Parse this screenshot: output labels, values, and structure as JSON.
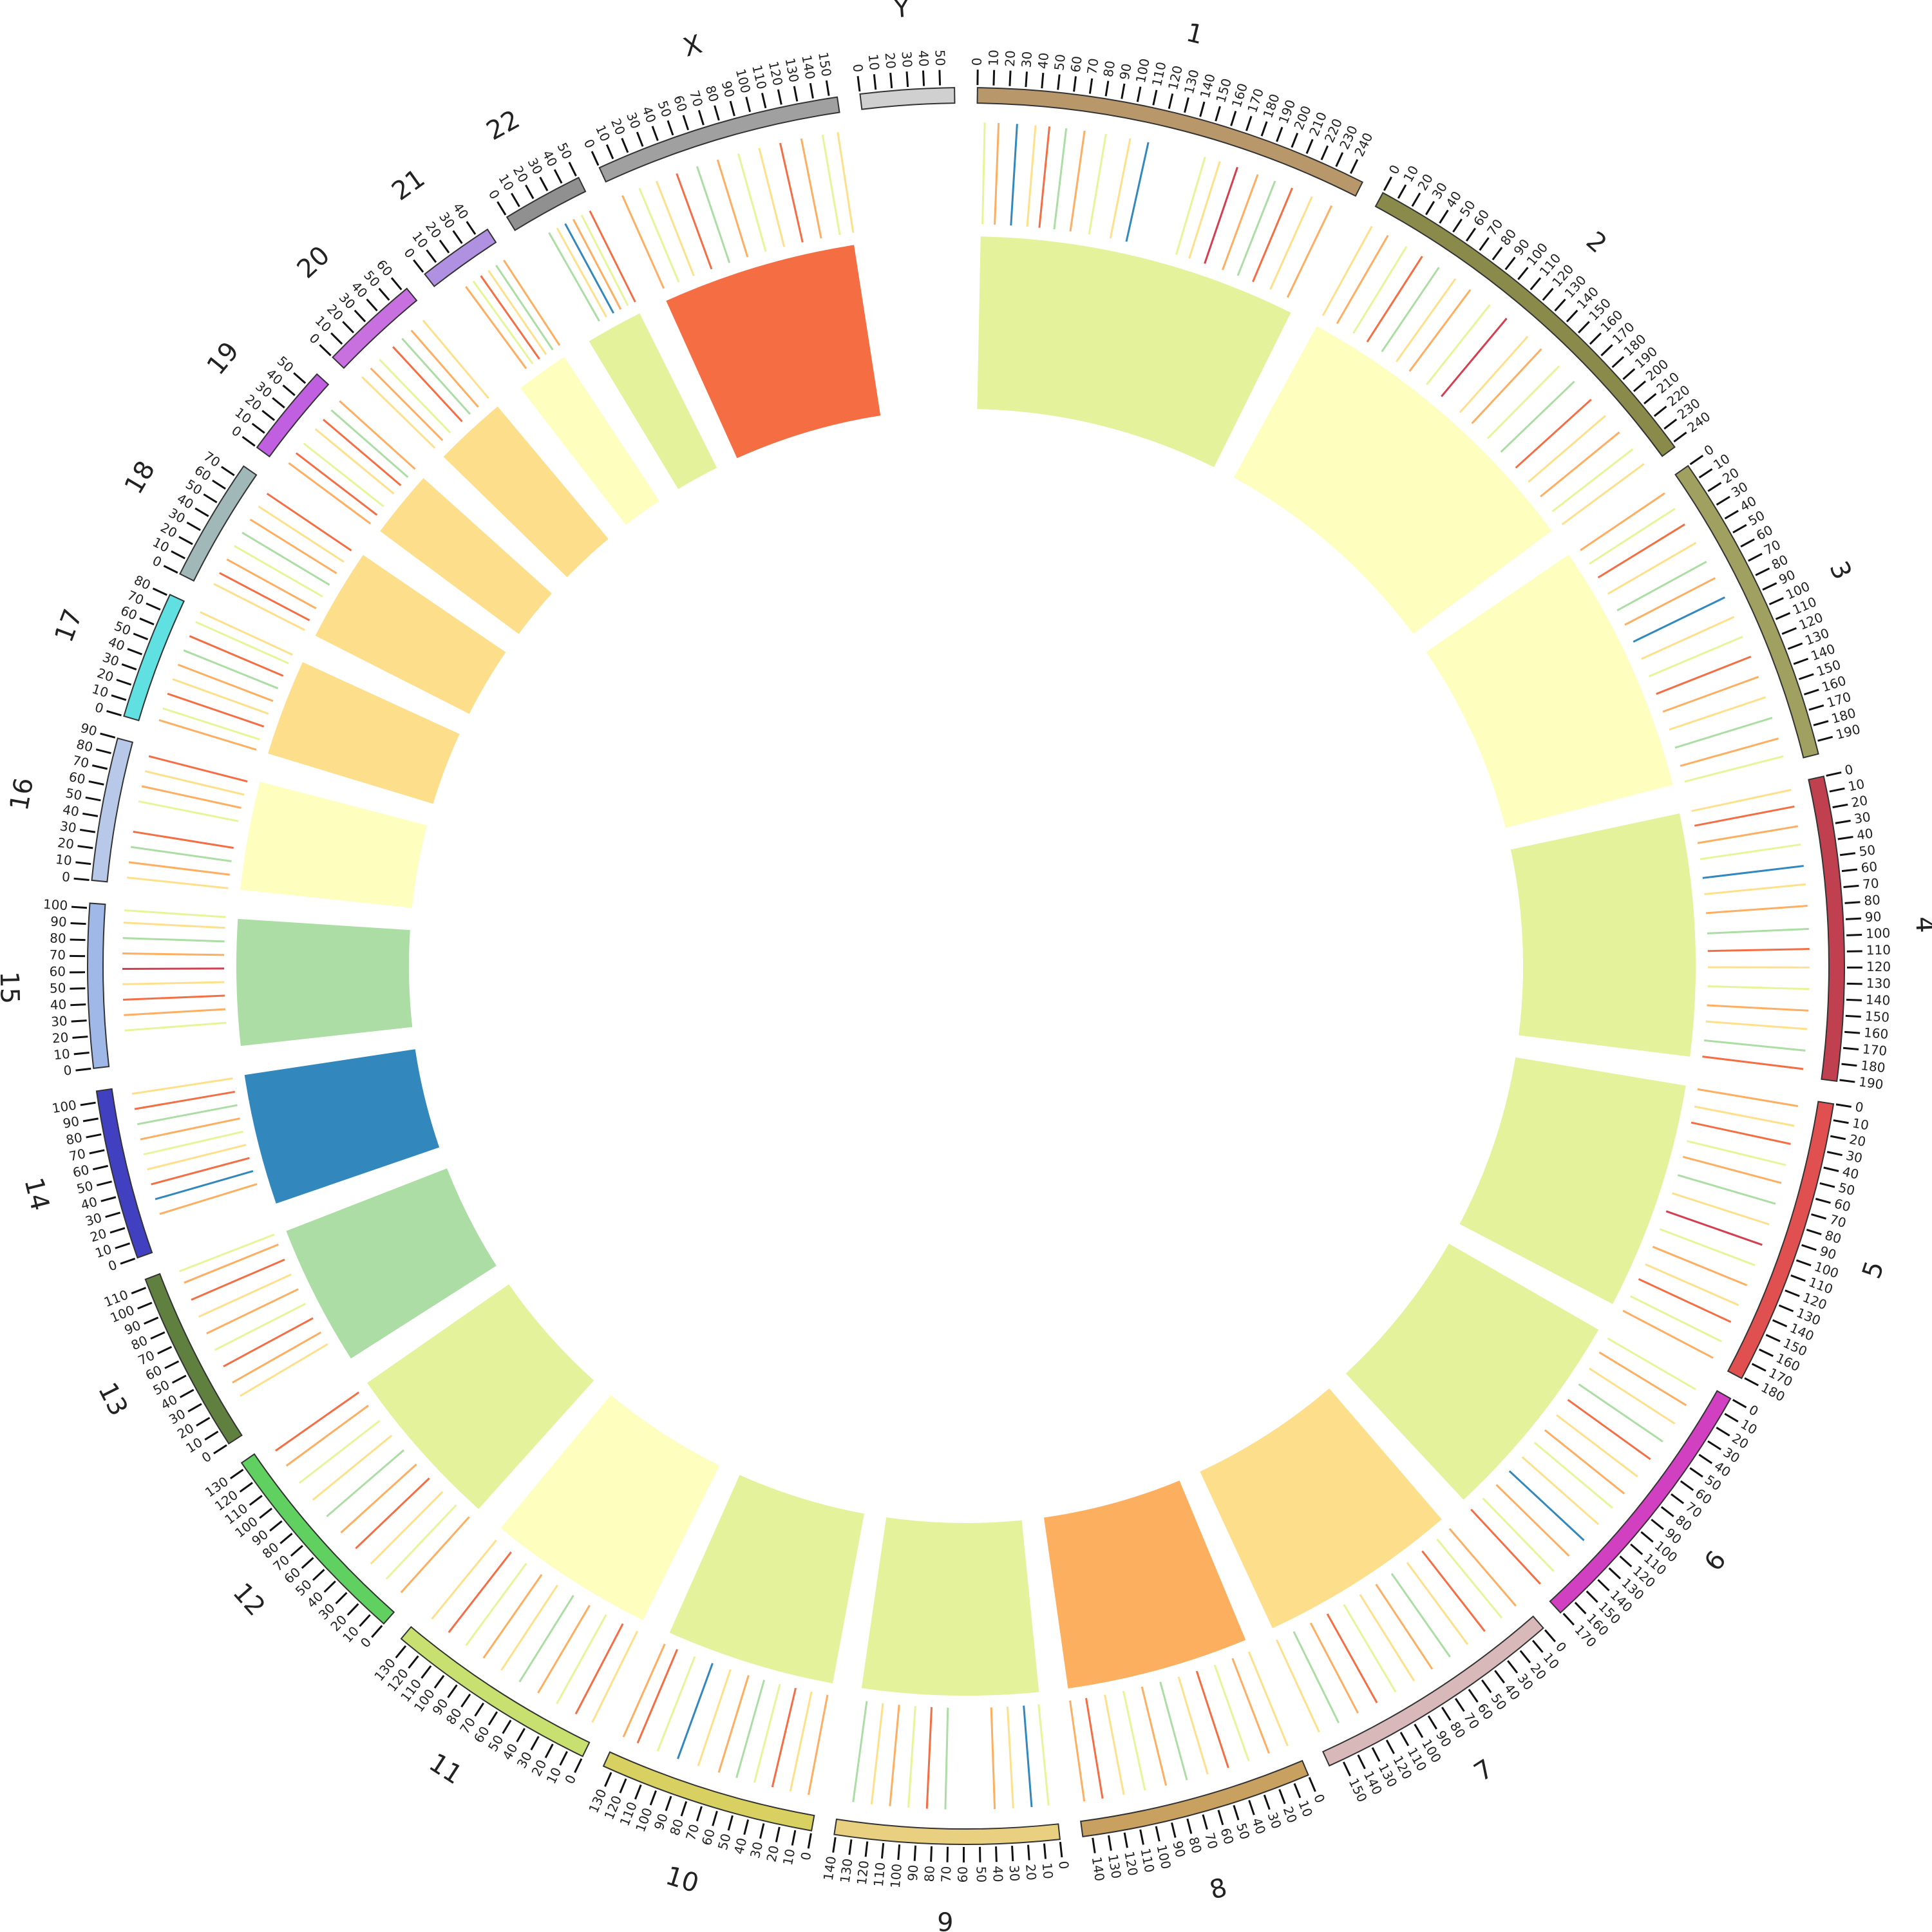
{
  "chart_data": {
    "type": "circos",
    "ticks": [
      0,
      10,
      20,
      30,
      40,
      50,
      60,
      70,
      80,
      90,
      100,
      110,
      120,
      130,
      140,
      150,
      160,
      170,
      180,
      190,
      200,
      210,
      220,
      230,
      240
    ],
    "palette": [
      "#d53e4f",
      "#f46d43",
      "#fdae61",
      "#fee08b",
      "#e6f598",
      "#abdda4",
      "#3288bd"
    ],
    "chromosomes": [
      {
        "name": "1",
        "length": 249,
        "color": "#b8986a",
        "heat": "#e3f29b",
        "pos": [
          5,
          14,
          26,
          38,
          47,
          58,
          70,
          84,
          100,
          112,
          150,
          160,
          172,
          186,
          198,
          210,
          224,
          238
        ],
        "ci": [
          4,
          2,
          6,
          3,
          1,
          5,
          2,
          4,
          3,
          6,
          4,
          3,
          0,
          2,
          5,
          1,
          3,
          2
        ]
      },
      {
        "name": "2",
        "length": 243,
        "color": "#8a8a4a",
        "heat": "#fefebe",
        "pos": [
          4,
          16,
          30,
          42,
          55,
          68,
          80,
          96,
          110,
          128,
          140,
          156,
          170,
          186,
          200,
          214,
          228,
          240
        ],
        "ci": [
          3,
          2,
          4,
          1,
          5,
          3,
          2,
          4,
          0,
          3,
          2,
          4,
          5,
          1,
          3,
          2,
          4,
          3
        ]
      },
      {
        "name": "3",
        "length": 198,
        "color": "#a0a060",
        "heat": "#fefebe",
        "pos": [
          6,
          18,
          30,
          44,
          58,
          70,
          84,
          98,
          112,
          126,
          140,
          154,
          168,
          182,
          194
        ],
        "ci": [
          2,
          4,
          1,
          3,
          5,
          2,
          6,
          3,
          4,
          1,
          2,
          3,
          5,
          2,
          4
        ]
      },
      {
        "name": "4",
        "length": 191,
        "color": "#c04050",
        "heat": "#e3f29b",
        "pos": [
          4,
          15,
          28,
          40,
          54,
          66,
          80,
          95,
          108,
          120,
          134,
          148,
          160,
          174,
          186
        ],
        "ci": [
          3,
          1,
          2,
          4,
          6,
          3,
          2,
          5,
          1,
          3,
          4,
          2,
          3,
          5,
          1
        ]
      },
      {
        "name": "5",
        "length": 181,
        "color": "#e05050",
        "heat": "#e3f29b",
        "pos": [
          5,
          18,
          30,
          44,
          56,
          70,
          84,
          98,
          112,
          126,
          140,
          152,
          166,
          178
        ],
        "ci": [
          2,
          3,
          1,
          4,
          2,
          5,
          3,
          0,
          4,
          2,
          3,
          1,
          4,
          2
        ]
      },
      {
        "name": "6",
        "length": 171,
        "color": "#d040c0",
        "heat": "#e3f29b",
        "pos": [
          6,
          18,
          32,
          46,
          60,
          74,
          88,
          100,
          114,
          128,
          142,
          156,
          168
        ],
        "ci": [
          4,
          2,
          3,
          5,
          1,
          3,
          2,
          4,
          3,
          6,
          2,
          4,
          1
        ]
      },
      {
        "name": "7",
        "length": 159,
        "color": "#d8b8b8",
        "heat": "#fdde8b",
        "pos": [
          4,
          16,
          30,
          44,
          58,
          72,
          86,
          100,
          114,
          128,
          142,
          156
        ],
        "ci": [
          2,
          4,
          1,
          3,
          5,
          2,
          3,
          4,
          1,
          2,
          5,
          3
        ]
      },
      {
        "name": "8",
        "length": 146,
        "color": "#c8a060",
        "heat": "#fdaf60",
        "pos": [
          5,
          18,
          32,
          46,
          60,
          74,
          88,
          102,
          116,
          130,
          142
        ],
        "ci": [
          3,
          2,
          4,
          1,
          3,
          5,
          2,
          4,
          3,
          1,
          2
        ]
      },
      {
        "name": "9",
        "length": 141,
        "color": "#e8d080",
        "heat": "#e3f29b",
        "pos": [
          5,
          16,
          28,
          40,
          72,
          84,
          96,
          108,
          120,
          132
        ],
        "ci": [
          4,
          6,
          3,
          2,
          5,
          1,
          4,
          2,
          3,
          5
        ]
      },
      {
        "name": "10",
        "length": 136,
        "color": "#d8d060",
        "heat": "#e3f29b",
        "pos": [
          6,
          18,
          30,
          42,
          54,
          66,
          80,
          94,
          108,
          122,
          132
        ],
        "ci": [
          2,
          3,
          1,
          4,
          5,
          2,
          3,
          6,
          4,
          1,
          2
        ]
      },
      {
        "name": "11",
        "length": 135,
        "color": "#c8e070",
        "heat": "#fefebe",
        "pos": [
          4,
          16,
          30,
          44,
          58,
          72,
          86,
          100,
          114,
          128
        ],
        "ci": [
          3,
          1,
          4,
          2,
          5,
          3,
          2,
          4,
          1,
          3
        ]
      },
      {
        "name": "12",
        "length": 134,
        "color": "#60d060",
        "heat": "#e3f29b",
        "pos": [
          5,
          18,
          32,
          46,
          60,
          74,
          88,
          102,
          116,
          128
        ],
        "ci": [
          2,
          4,
          3,
          1,
          2,
          5,
          3,
          4,
          2,
          1
        ]
      },
      {
        "name": "13",
        "length": 115,
        "color": "#608040",
        "heat": "#abdda4",
        "pos": [
          22,
          32,
          44,
          56,
          68,
          80,
          92,
          104,
          112
        ],
        "ci": [
          3,
          2,
          1,
          4,
          2,
          3,
          1,
          2,
          4
        ]
      },
      {
        "name": "14",
        "length": 107,
        "color": "#4040c0",
        "heat": "#3288bd",
        "pos": [
          22,
          32,
          42,
          52,
          62,
          72,
          82,
          92,
          102
        ],
        "ci": [
          2,
          6,
          1,
          3,
          4,
          2,
          5,
          1,
          3
        ]
      },
      {
        "name": "15",
        "length": 103,
        "color": "#a0b8e8",
        "heat": "#abdda4",
        "pos": [
          22,
          32,
          42,
          52,
          62,
          72,
          82,
          92,
          100
        ],
        "ci": [
          4,
          2,
          1,
          3,
          0,
          2,
          5,
          3,
          4
        ]
      },
      {
        "name": "16",
        "length": 90,
        "color": "#b8c8e8",
        "heat": "#fefebe",
        "pos": [
          4,
          14,
          24,
          34,
          54,
          64,
          74,
          84
        ],
        "ci": [
          3,
          2,
          5,
          1,
          4,
          2,
          3,
          1
        ]
      },
      {
        "name": "17",
        "length": 81,
        "color": "#60e0e0",
        "heat": "#fdde8b",
        "pos": [
          4,
          12,
          22,
          32,
          42,
          52,
          62,
          72,
          79
        ],
        "ci": [
          2,
          4,
          1,
          3,
          2,
          5,
          1,
          4,
          3
        ]
      },
      {
        "name": "18",
        "length": 78,
        "color": "#a0b8b8",
        "heat": "#fdde8b",
        "pos": [
          4,
          12,
          22,
          32,
          42,
          52,
          62,
          72
        ],
        "ci": [
          3,
          1,
          2,
          4,
          5,
          2,
          3,
          1
        ]
      },
      {
        "name": "19",
        "length": 59,
        "color": "#c060e0",
        "heat": "#fdde8b",
        "pos": [
          4,
          12,
          20,
          32,
          40,
          48,
          56
        ],
        "ci": [
          2,
          1,
          4,
          3,
          1,
          5,
          2
        ]
      },
      {
        "name": "20",
        "length": 63,
        "color": "#c870e0",
        "heat": "#fdde8b",
        "pos": [
          4,
          12,
          20,
          32,
          40,
          48,
          58
        ],
        "ci": [
          3,
          2,
          4,
          1,
          5,
          2,
          3
        ]
      },
      {
        "name": "21",
        "length": 48,
        "color": "#b090e0",
        "heat": "#fefebe",
        "pos": [
          16,
          22,
          28,
          34,
          40,
          46
        ],
        "ci": [
          2,
          4,
          1,
          3,
          5,
          2
        ]
      },
      {
        "name": "22",
        "length": 51,
        "color": "#909090",
        "heat": "#e3f29b",
        "pos": [
          18,
          24,
          30,
          36,
          42,
          48
        ],
        "ci": [
          5,
          3,
          6,
          2,
          4,
          1
        ]
      },
      {
        "name": "X",
        "length": 155,
        "color": "#a0a0a0",
        "heat": "#f46d43",
        "pos": [
          6,
          18,
          30,
          44,
          58,
          72,
          86,
          100,
          114,
          128,
          142,
          152
        ],
        "ci": [
          2,
          4,
          3,
          1,
          5,
          2,
          4,
          3,
          1,
          2,
          4,
          3
        ]
      },
      {
        "name": "Y",
        "length": 59,
        "color": "#d0d0d0",
        "heat": null,
        "pos": [],
        "ci": []
      }
    ]
  }
}
